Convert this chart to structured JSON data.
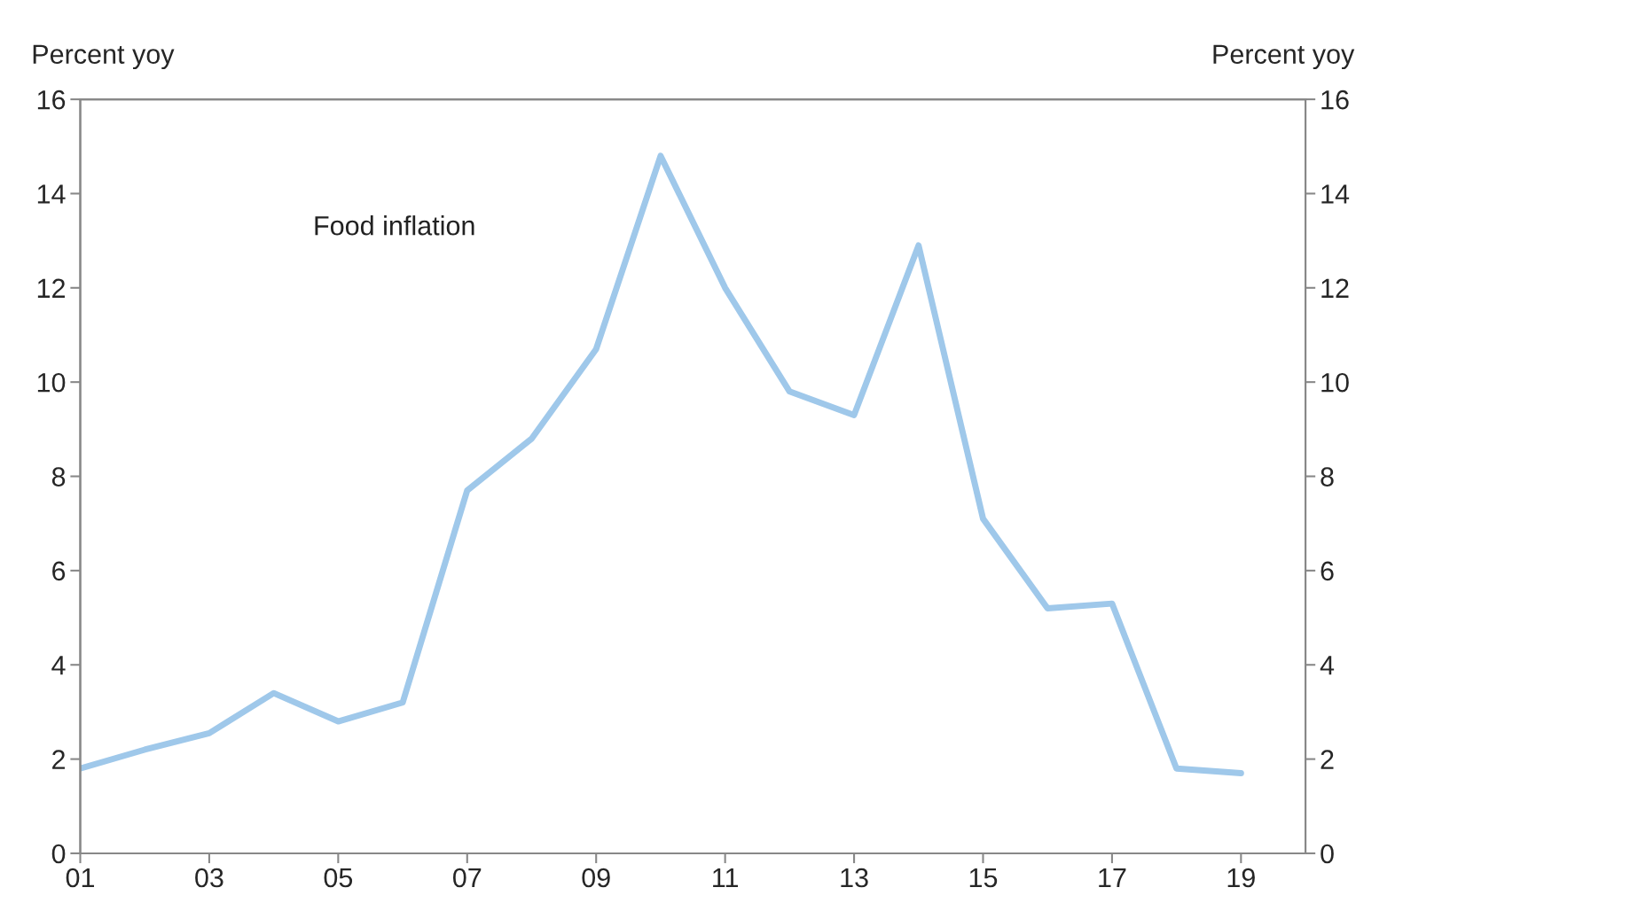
{
  "chart_data": {
    "type": "line",
    "ylabel": "Percent yoy",
    "y2label": "Percent yoy",
    "x": [
      2001,
      2002,
      2003,
      2004,
      2005,
      2006,
      2007,
      2008,
      2009,
      2010,
      2011,
      2012,
      2013,
      2014,
      2015,
      2016,
      2017,
      2018,
      2019
    ],
    "series": [
      {
        "name": "Food inflation",
        "color": "#9fc8ea",
        "values": [
          1.8,
          2.2,
          2.55,
          3.4,
          2.8,
          3.2,
          7.7,
          8.8,
          10.7,
          14.8,
          12.0,
          9.8,
          9.3,
          12.9,
          7.1,
          5.2,
          5.3,
          1.8,
          1.7
        ]
      }
    ],
    "xlim": [
      2001,
      2020
    ],
    "xticks": [
      {
        "value": 2001,
        "label": "01"
      },
      {
        "value": 2003,
        "label": "03"
      },
      {
        "value": 2005,
        "label": "05"
      },
      {
        "value": 2007,
        "label": "07"
      },
      {
        "value": 2009,
        "label": "09"
      },
      {
        "value": 2011,
        "label": "11"
      },
      {
        "value": 2013,
        "label": "13"
      },
      {
        "value": 2015,
        "label": "15"
      },
      {
        "value": 2017,
        "label": "17"
      },
      {
        "value": 2019,
        "label": "19"
      }
    ],
    "ylim": [
      0,
      16
    ],
    "yticks": [
      0,
      2,
      4,
      6,
      8,
      10,
      12,
      14,
      16
    ],
    "y2lim": [
      0,
      16
    ],
    "y2ticks": [
      0,
      2,
      4,
      6,
      8,
      10,
      12,
      14,
      16
    ],
    "grid": false,
    "legend": false,
    "marker": "none",
    "line_style": "solid"
  }
}
